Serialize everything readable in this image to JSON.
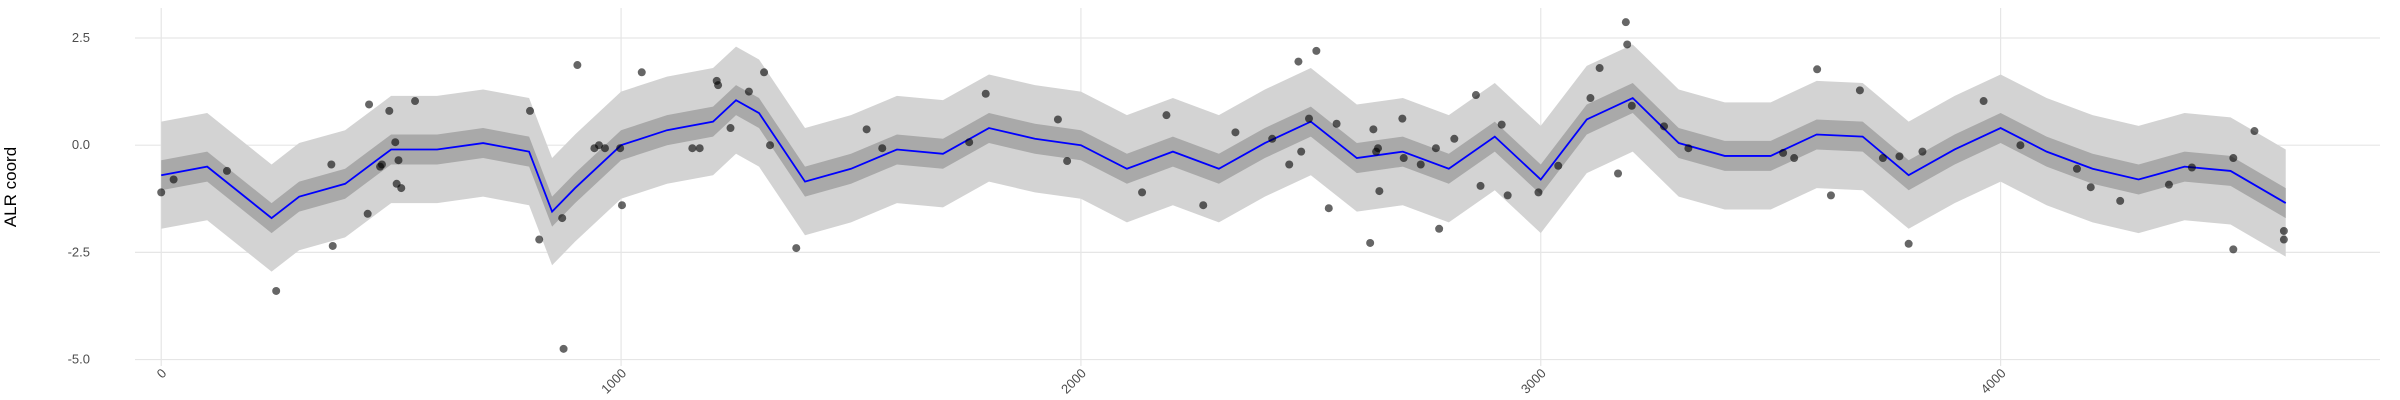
{
  "chart_data": {
    "type": "scatter",
    "y_label": "ALR coord",
    "xlim": [
      -57,
      4825
    ],
    "ylim": [
      -5.15,
      3.2
    ],
    "xticks": [
      0,
      1000,
      2000,
      3000,
      4000
    ],
    "yticks": [
      2.5,
      {
        "value": 0,
        "label": "0.0"
      },
      -2.5,
      {
        "value": -5,
        "label": "-5.0"
      }
    ],
    "grid": true,
    "points": {
      "color": "#000000",
      "x": [
        0,
        27,
        143,
        250,
        370,
        373,
        449,
        452,
        476,
        480,
        496,
        509,
        516,
        512,
        522,
        552,
        802,
        822,
        872,
        875,
        905,
        942,
        952,
        965,
        998,
        1002,
        1045,
        1155,
        1171,
        1208,
        1211,
        1238,
        1278,
        1311,
        1324,
        1381,
        1534,
        1568,
        1757,
        1793,
        1950,
        1970,
        2133,
        2186,
        2266,
        2336,
        2416,
        2453,
        2473,
        2479,
        2496,
        2512,
        2539,
        2556,
        2629,
        2636,
        2642,
        2646,
        2649,
        2699,
        2702,
        2739,
        2772,
        2779,
        2812,
        2859,
        2869,
        2915,
        2928,
        2995,
        3038,
        3108,
        3128,
        3168,
        3185,
        3188,
        3198,
        3268,
        3321,
        3527,
        3551,
        3601,
        3631,
        3694,
        3744,
        3780,
        3800,
        3830,
        3963,
        4043,
        4166,
        4196,
        4260,
        4366,
        4416,
        4506,
        4506,
        4552,
        4616,
        4616
      ],
      "y": [
        -1.1,
        -0.8,
        -0.6,
        -3.4,
        -0.45,
        -2.35,
        -1.6,
        0.95,
        -0.5,
        -0.45,
        0.8,
        0.07,
        -0.35,
        -0.9,
        -1.0,
        1.03,
        0.8,
        -2.2,
        -1.7,
        -4.75,
        1.87,
        -0.07,
        0,
        -0.07,
        -0.07,
        -1.4,
        1.7,
        -0.07,
        -0.07,
        1.5,
        1.4,
        0.4,
        1.25,
        1.7,
        0,
        -2.4,
        0.37,
        -0.07,
        0.07,
        1.2,
        0.6,
        -0.37,
        -1.1,
        0.7,
        -1.4,
        0.3,
        0.15,
        -0.45,
        1.95,
        -0.15,
        0.62,
        2.2,
        -1.47,
        0.5,
        -2.28,
        0.37,
        -0.15,
        -0.07,
        -1.07,
        0.62,
        -0.3,
        -0.45,
        -0.07,
        -1.95,
        0.15,
        1.17,
        -0.95,
        0.48,
        -1.17,
        -1.1,
        -0.48,
        1.1,
        1.8,
        -0.66,
        2.87,
        2.35,
        0.92,
        0.44,
        -0.07,
        -0.18,
        -0.3,
        1.77,
        -1.17,
        1.28,
        -0.3,
        -0.26,
        -2.3,
        -0.15,
        1.03,
        0,
        -0.55,
        -0.98,
        -1.3,
        -0.92,
        -0.52,
        -0.3,
        -2.43,
        0.33,
        -2.0,
        -2.2
      ]
    },
    "fit": {
      "color": "#0000ff",
      "x": [
        0,
        100,
        240,
        300,
        400,
        500,
        600,
        700,
        800,
        850,
        900,
        1000,
        1100,
        1200,
        1250,
        1300,
        1400,
        1500,
        1600,
        1700,
        1800,
        1900,
        2000,
        2100,
        2200,
        2300,
        2400,
        2500,
        2600,
        2700,
        2800,
        2900,
        3000,
        3100,
        3200,
        3300,
        3400,
        3500,
        3600,
        3700,
        3800,
        3900,
        4000,
        4100,
        4200,
        4300,
        4400,
        4500,
        4620
      ],
      "values": [
        -0.7,
        -0.5,
        -1.7,
        -1.2,
        -0.9,
        -0.1,
        -0.1,
        0.05,
        -0.15,
        -1.55,
        -1.0,
        0,
        0.35,
        0.55,
        1.05,
        0.75,
        -0.85,
        -0.55,
        -0.1,
        -0.2,
        0.4,
        0.15,
        0,
        -0.55,
        -0.15,
        -0.55,
        0.05,
        0.55,
        -0.3,
        -0.15,
        -0.55,
        0.2,
        -0.8,
        0.6,
        1.1,
        0.05,
        -0.25,
        -0.25,
        0.25,
        0.2,
        -0.7,
        -0.1,
        0.4,
        -0.15,
        -0.55,
        -0.8,
        -0.5,
        -0.6,
        -1.35
      ]
    },
    "bands": [
      {
        "color": "#d3d3d3",
        "lower": [
          -1.95,
          -1.75,
          -2.95,
          -2.45,
          -2.15,
          -1.35,
          -1.35,
          -1.2,
          -1.4,
          -2.8,
          -2.25,
          -1.25,
          -0.9,
          -0.7,
          -0.2,
          -0.5,
          -2.1,
          -1.8,
          -1.35,
          -1.45,
          -0.85,
          -1.1,
          -1.25,
          -1.8,
          -1.4,
          -1.8,
          -1.2,
          -0.7,
          -1.55,
          -1.4,
          -1.8,
          -1.05,
          -2.05,
          -0.65,
          -0.15,
          -1.2,
          -1.5,
          -1.5,
          -1.0,
          -1.05,
          -1.95,
          -1.35,
          -0.85,
          -1.4,
          -1.8,
          -2.05,
          -1.75,
          -1.85,
          -2.6
        ],
        "upper": [
          0.55,
          0.75,
          -0.45,
          0.05,
          0.35,
          1.15,
          1.15,
          1.3,
          1.1,
          -0.3,
          0.25,
          1.25,
          1.6,
          1.8,
          2.3,
          2.0,
          0.4,
          0.7,
          1.15,
          1.05,
          1.65,
          1.4,
          1.25,
          0.7,
          1.1,
          0.7,
          1.3,
          1.8,
          0.95,
          1.1,
          0.7,
          1.45,
          0.45,
          1.85,
          2.35,
          1.3,
          1.0,
          1.0,
          1.5,
          1.45,
          0.55,
          1.15,
          1.65,
          1.1,
          0.7,
          0.45,
          0.75,
          0.65,
          -0.1
        ]
      },
      {
        "color": "#a9a9a9",
        "lower": [
          -1.05,
          -0.85,
          -2.05,
          -1.55,
          -1.25,
          -0.45,
          -0.45,
          -0.3,
          -0.5,
          -1.9,
          -1.35,
          -0.35,
          0,
          0.2,
          0.7,
          0.4,
          -1.2,
          -0.9,
          -0.45,
          -0.55,
          0.05,
          -0.2,
          -0.35,
          -0.9,
          -0.5,
          -0.9,
          -0.3,
          0.2,
          -0.65,
          -0.5,
          -0.9,
          -0.15,
          -1.15,
          0.25,
          0.75,
          -0.3,
          -0.6,
          -0.6,
          -0.1,
          -0.15,
          -1.05,
          -0.45,
          0.05,
          -0.5,
          -0.9,
          -1.15,
          -0.85,
          -0.95,
          -1.7
        ],
        "upper": [
          -0.35,
          -0.15,
          -1.35,
          -0.85,
          -0.55,
          0.25,
          0.25,
          0.4,
          0.2,
          -1.2,
          -0.65,
          0.35,
          0.7,
          0.9,
          1.4,
          1.1,
          -0.5,
          -0.2,
          0.25,
          0.15,
          0.75,
          0.5,
          0.35,
          -0.2,
          0.2,
          -0.2,
          0.4,
          0.9,
          0.05,
          0.2,
          -0.2,
          0.55,
          -0.45,
          0.95,
          1.45,
          0.4,
          0.1,
          0.1,
          0.6,
          0.55,
          -0.35,
          0.25,
          0.75,
          0.2,
          -0.2,
          -0.45,
          -0.15,
          -0.25,
          -1.0
        ]
      }
    ]
  }
}
